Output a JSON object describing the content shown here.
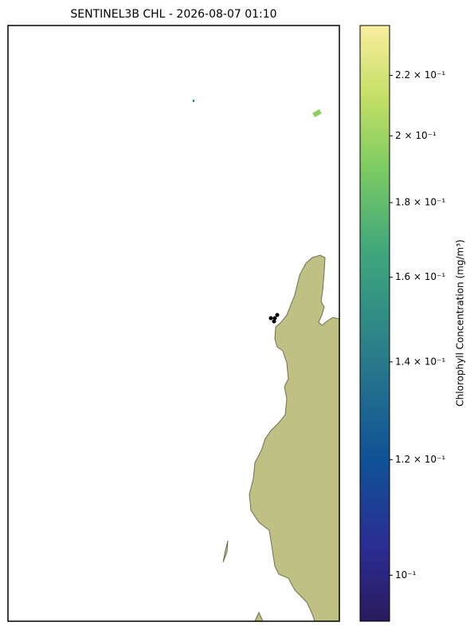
{
  "chart_data": {
    "type": "map",
    "title": "SENTINEL3B CHL - 2026-08-07 01:10",
    "colorbar": {
      "label": "Chlorophyll Concentration (mg/m³)",
      "log": true,
      "lim": [
        0.093,
        0.238
      ],
      "ticks": [
        {
          "value": 0.1,
          "label": "10⁻¹"
        },
        {
          "value": 0.12,
          "label": "1.2 × 10⁻¹"
        },
        {
          "value": 0.14,
          "label": "1.4 × 10⁻¹"
        },
        {
          "value": 0.16,
          "label": "1.6 × 10⁻¹"
        },
        {
          "value": 0.18,
          "label": "1.8 × 10⁻¹"
        },
        {
          "value": 0.2,
          "label": "2 × 10⁻¹"
        },
        {
          "value": 0.22,
          "label": "2.2 × 10⁻¹"
        }
      ]
    }
  }
}
